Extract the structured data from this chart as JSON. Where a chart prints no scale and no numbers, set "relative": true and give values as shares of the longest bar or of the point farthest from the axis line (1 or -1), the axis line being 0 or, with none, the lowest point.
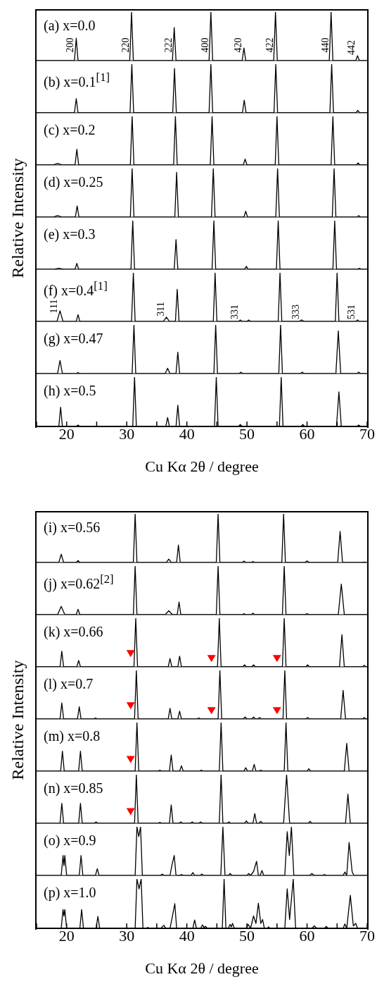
{
  "chart_data": [
    {
      "type": "line",
      "title": "(a) x=0.0",
      "ylabel": "Relative Intensity",
      "relative": true,
      "xlim": [
        15,
        70
      ],
      "tick_labels": false,
      "annotations": [
        {
          "text": "200",
          "x": 21.6,
          "y": 0.46
        },
        {
          "text": "220",
          "x": 30.8,
          "y": 1
        },
        {
          "text": "222",
          "x": 37.9,
          "y": 0.68
        },
        {
          "text": "400",
          "x": 44.0,
          "y": 1
        },
        {
          "text": "420",
          "x": 49.5,
          "y": 0.26
        },
        {
          "text": "422",
          "x": 54.75,
          "y": 1
        },
        {
          "text": "440",
          "x": 64.0,
          "y": 1
        },
        {
          "text": "442",
          "x": 68.4,
          "y": 0.1
        }
      ],
      "series": [
        {
          "color": "#000000",
          "x": [
            15,
            21.3,
            21.6,
            21.9,
            30.5,
            30.8,
            31.1,
            37.6,
            37.9,
            38.2,
            43.7,
            44.0,
            44.3,
            49.2,
            49.5,
            49.8,
            54.45,
            54.75,
            55.05,
            63.7,
            64.0,
            64.3,
            68.1,
            68.4,
            68.7,
            70
          ],
          "values": [
            0,
            0,
            0.46,
            0,
            0,
            1,
            0,
            0,
            0.68,
            0,
            0,
            1,
            0,
            0,
            0.26,
            0,
            0,
            1,
            0,
            0,
            1,
            0,
            0,
            0.1,
            0,
            0
          ]
        }
      ]
    },
    {
      "type": "line",
      "title": "(b) x=0.1$^{[1]}$",
      "relative": true,
      "xlim": [
        15,
        70
      ],
      "tick_labels": false,
      "series": [
        {
          "color": "#000000",
          "x": [
            15,
            21.3,
            21.6,
            21.9,
            30.55,
            30.85,
            31.15,
            37.65,
            37.95,
            38.25,
            43.7,
            44.0,
            44.3,
            49.25,
            49.55,
            49.85,
            54.5,
            54.8,
            55.1,
            63.8,
            64.1,
            64.4,
            68.15,
            68.45,
            68.75,
            70
          ],
          "values": [
            0,
            0,
            0.29,
            0,
            0,
            1,
            0,
            0,
            0.91,
            0,
            0,
            1,
            0,
            0,
            0.26,
            0,
            0,
            1,
            0,
            0,
            1,
            0,
            0,
            0.05,
            0,
            0
          ]
        }
      ]
    },
    {
      "type": "line",
      "title": "(c) x=0.2",
      "relative": true,
      "xlim": [
        15,
        70
      ],
      "tick_labels": false,
      "series": [
        {
          "color": "#000000",
          "x": [
            15,
            17.7,
            18.5,
            19.3,
            21.4,
            21.7,
            22.0,
            30.6,
            30.9,
            31.2,
            37.8,
            38.1,
            38.4,
            43.9,
            44.2,
            44.5,
            49.4,
            49.7,
            50.0,
            54.7,
            55.0,
            55.3,
            64.0,
            64.3,
            64.6,
            68.2,
            68.5,
            68.8,
            70
          ],
          "values": [
            0,
            0,
            0.03,
            0,
            0,
            0.32,
            0,
            0,
            1,
            0,
            0,
            1,
            0,
            0,
            1,
            0,
            0,
            0.12,
            0,
            0,
            1,
            0,
            0,
            1,
            0,
            0,
            0.04,
            0,
            0
          ]
        }
      ]
    },
    {
      "type": "line",
      "title": "(d) x=0.25",
      "relative": true,
      "xlim": [
        15,
        70
      ],
      "tick_labels": false,
      "series": [
        {
          "color": "#000000",
          "x": [
            15,
            17.7,
            18.5,
            19.3,
            21.45,
            21.75,
            22.05,
            30.6,
            30.9,
            31.2,
            38.0,
            38.3,
            38.6,
            44.1,
            44.4,
            44.7,
            49.5,
            49.8,
            50.1,
            54.8,
            55.1,
            55.4,
            64.2,
            64.5,
            64.8,
            68.3,
            68.6,
            68.9,
            70
          ],
          "values": [
            0,
            0,
            0.03,
            0,
            0,
            0.23,
            0,
            0,
            1,
            0,
            0,
            0.92,
            0,
            0,
            1,
            0,
            0,
            0.12,
            0,
            0,
            1,
            0,
            0,
            1,
            0,
            0,
            0.03,
            0,
            0
          ]
        }
      ]
    },
    {
      "type": "line",
      "title": "(e) x=0.3",
      "relative": true,
      "xlim": [
        15,
        70
      ],
      "tick_labels": false,
      "series": [
        {
          "color": "#000000",
          "x": [
            15,
            17.9,
            18.7,
            19.5,
            21.4,
            21.7,
            22.0,
            30.7,
            31.0,
            31.3,
            37.9,
            38.2,
            38.5,
            44.2,
            44.5,
            44.8,
            49.6,
            49.9,
            50.2,
            54.9,
            55.2,
            55.5,
            64.3,
            64.6,
            64.9,
            68.4,
            68.7,
            69.0,
            70
          ],
          "values": [
            0,
            0,
            0.02,
            0,
            0,
            0.12,
            0,
            0,
            1,
            0,
            0,
            0.61,
            0,
            0,
            1,
            0,
            0,
            0.06,
            0,
            0,
            1,
            0,
            0,
            1,
            0,
            0,
            0.02,
            0,
            0
          ]
        }
      ]
    },
    {
      "type": "line",
      "title": "(f) x=0.4$^{[1]}$",
      "relative": true,
      "xlim": [
        15,
        70
      ],
      "tick_labels": false,
      "annotations": [
        {
          "text": "111",
          "x": 18.9,
          "y": 0.22
        },
        {
          "text": "311",
          "x": 36.6,
          "y": 0.09
        },
        {
          "text": "331",
          "x": 48.9,
          "y": 0.03
        },
        {
          "text": "333",
          "x": 59.1,
          "y": 0.03
        },
        {
          "text": "531",
          "x": 68.4,
          "y": 0.03
        }
      ],
      "series": [
        {
          "color": "#000000",
          "x": [
            15,
            18.4,
            18.9,
            19.4,
            21.6,
            21.9,
            22.2,
            30.8,
            31.1,
            31.4,
            36.1,
            36.6,
            37.1,
            38.1,
            38.4,
            38.7,
            44.4,
            44.7,
            45.0,
            48.6,
            48.9,
            49.2,
            50.0,
            50.3,
            50.6,
            55.2,
            55.5,
            55.8,
            58.7,
            59.1,
            59.5,
            64.7,
            65.0,
            65.3,
            68.1,
            68.4,
            68.7,
            70
          ],
          "values": [
            0,
            0,
            0.22,
            0,
            0,
            0.14,
            0,
            0,
            1,
            0,
            0,
            0.09,
            0,
            0,
            0.66,
            0,
            0,
            1,
            0,
            0,
            0.03,
            0,
            0,
            0.03,
            0,
            0,
            1,
            0,
            0,
            0.03,
            0,
            0,
            1,
            0,
            0,
            0.03,
            0,
            0
          ]
        }
      ]
    },
    {
      "type": "line",
      "title": "(g) x=0.47",
      "relative": true,
      "xlim": [
        15,
        70
      ],
      "tick_labels": false,
      "series": [
        {
          "color": "#000000",
          "x": [
            15,
            18.5,
            18.9,
            19.3,
            21.6,
            21.9,
            22.2,
            30.9,
            31.2,
            31.5,
            36.4,
            36.8,
            37.2,
            38.2,
            38.5,
            38.8,
            44.5,
            44.8,
            45.1,
            48.7,
            49.0,
            49.3,
            55.3,
            55.6,
            55.9,
            58.9,
            59.2,
            59.5,
            64.8,
            65.2,
            65.6,
            68.3,
            68.6,
            68.9,
            70
          ],
          "values": [
            0,
            0,
            0.27,
            0,
            0,
            0.02,
            0,
            0,
            1,
            0,
            0,
            0.11,
            0,
            0,
            0.44,
            0,
            0,
            1,
            0,
            0,
            0.03,
            0,
            0,
            1,
            0,
            0,
            0.03,
            0,
            0,
            0.88,
            0,
            0,
            0.03,
            0,
            0
          ]
        }
      ]
    },
    {
      "type": "line",
      "title": "(h) x=0.5",
      "xlabel": "Cu Kα 2θ / degree",
      "relative": true,
      "xlim": [
        15,
        70
      ],
      "xticks": [
        {
          "value": 15,
          "label": null
        },
        20,
        {
          "value": 25,
          "label": null
        },
        30,
        {
          "value": 35,
          "label": null
        },
        40,
        {
          "value": 45,
          "label": null
        },
        50,
        {
          "value": 55,
          "label": null
        },
        60,
        {
          "value": 65,
          "label": null
        },
        70
      ],
      "tick_labels": "x",
      "series": [
        {
          "color": "#000000",
          "x": [
            15,
            18.7,
            19.0,
            19.3,
            21.6,
            21.9,
            22.2,
            31.0,
            31.3,
            31.6,
            36.5,
            36.8,
            37.1,
            38.2,
            38.5,
            38.8,
            44.6,
            44.9,
            45.2,
            48.6,
            48.9,
            49.2,
            55.4,
            55.7,
            56.0,
            59.0,
            59.3,
            59.6,
            64.9,
            65.3,
            65.7,
            68.3,
            68.6,
            68.9,
            70
          ],
          "values": [
            0,
            0,
            0.39,
            0,
            0,
            0.03,
            0,
            0,
            1,
            0,
            0,
            0.18,
            0,
            0,
            0.43,
            0,
            0,
            1,
            0,
            0,
            0.04,
            0,
            0,
            1,
            0,
            0,
            0.04,
            0,
            0,
            0.7,
            0,
            0,
            0.03,
            0,
            0
          ]
        }
      ]
    },
    {
      "type": "line",
      "title": "(i) x=0.56",
      "ylabel": "Relative Intensity",
      "relative": true,
      "xlim": [
        15,
        70
      ],
      "tick_labels": false,
      "series": [
        {
          "color": "#000000",
          "x": [
            15,
            18.7,
            19.1,
            19.5,
            21.6,
            21.9,
            22.2,
            31.1,
            31.4,
            31.7,
            36.6,
            37.0,
            37.4,
            38.3,
            38.6,
            38.9,
            44.9,
            45.2,
            45.5,
            49.2,
            49.5,
            49.8,
            50.7,
            51.0,
            51.3,
            55.8,
            56.1,
            56.4,
            59.6,
            60.0,
            60.4,
            65.1,
            65.5,
            65.9,
            69.2,
            69.5,
            69.8,
            70
          ],
          "values": [
            0,
            0,
            0.17,
            0,
            0,
            0.04,
            0,
            0,
            1,
            0,
            0,
            0.07,
            0,
            0,
            0.36,
            0,
            0,
            1,
            0,
            0,
            0.03,
            0,
            0,
            0.02,
            0,
            0,
            1,
            0,
            0,
            0.03,
            0,
            0,
            0.64,
            0,
            0,
            0.01,
            0,
            0
          ]
        }
      ]
    },
    {
      "type": "line",
      "title": "(j) x=0.62$^{[2]}$",
      "relative": true,
      "xlim": [
        15,
        70
      ],
      "tick_labels": false,
      "series": [
        {
          "color": "#000000",
          "x": [
            15,
            18.5,
            19.1,
            19.7,
            21.6,
            21.9,
            22.2,
            31.1,
            31.4,
            31.7,
            36.4,
            37.0,
            37.6,
            38.4,
            38.7,
            39.0,
            44.9,
            45.2,
            45.5,
            49.2,
            49.5,
            49.8,
            50.7,
            51.0,
            51.3,
            55.9,
            56.2,
            56.5,
            59.6,
            60.0,
            60.4,
            65.2,
            65.7,
            66.2,
            70
          ],
          "values": [
            0,
            0,
            0.17,
            0,
            0,
            0.11,
            0,
            0,
            1,
            0,
            0,
            0.08,
            0,
            0,
            0.26,
            0,
            0,
            1,
            0,
            0,
            0.02,
            0,
            0,
            0.03,
            0,
            0,
            1,
            0,
            0,
            0.02,
            0,
            0,
            0.63,
            0,
            0
          ]
        }
      ]
    },
    {
      "type": "line",
      "title": "(k) x=0.66",
      "relative": true,
      "xlim": [
        15,
        70
      ],
      "tick_labels": false,
      "series": [
        {
          "color": "#000000",
          "x": [
            15,
            18.9,
            19.2,
            19.5,
            21.7,
            22.0,
            22.3,
            31.2,
            31.5,
            31.8,
            36.9,
            37.2,
            37.5,
            38.5,
            38.8,
            39.1,
            45.1,
            45.4,
            45.7,
            49.3,
            49.6,
            49.9,
            50.8,
            51.1,
            51.4,
            55.9,
            56.2,
            56.5,
            59.8,
            60.1,
            60.4,
            65.4,
            65.8,
            66.2,
            69.2,
            69.5,
            69.8,
            70
          ],
          "values": [
            0,
            0,
            0.32,
            0,
            0,
            0.13,
            0,
            0,
            1,
            0,
            0,
            0.17,
            0,
            0,
            0.22,
            0,
            0,
            1,
            0,
            0,
            0.04,
            0,
            0,
            0.04,
            0,
            0,
            1,
            0,
            0,
            0.04,
            0,
            0,
            0.66,
            0,
            0,
            0.03,
            0,
            0
          ]
        },
        {
          "type": "scatter",
          "color": "#ff0000",
          "marker": "triangle",
          "x": [
            30.65,
            44.1,
            55.0
          ],
          "values": [
            0.27,
            0.17,
            0.17
          ]
        }
      ]
    },
    {
      "type": "line",
      "title": "(l) x=0.7",
      "relative": true,
      "xlim": [
        15,
        70
      ],
      "tick_labels": false,
      "series": [
        {
          "color": "#000000",
          "x": [
            15,
            18.9,
            19.2,
            19.5,
            21.8,
            22.1,
            22.4,
            24.5,
            24.8,
            25.1,
            31.3,
            31.6,
            31.9,
            36.9,
            37.2,
            37.5,
            38.5,
            38.8,
            39.1,
            41.7,
            42.0,
            42.3,
            45.2,
            45.5,
            45.8,
            49.4,
            49.7,
            50.0,
            50.8,
            51.1,
            51.4,
            51.8,
            52.1,
            52.4,
            56.0,
            56.3,
            56.6,
            59.8,
            60.1,
            60.4,
            65.6,
            66.0,
            66.4,
            69.2,
            69.5,
            69.8,
            70
          ],
          "values": [
            0,
            0,
            0.33,
            0,
            0,
            0.25,
            0,
            0,
            0.02,
            0,
            0,
            1,
            0,
            0,
            0.22,
            0,
            0,
            0.16,
            0,
            0,
            0.02,
            0,
            0,
            1,
            0,
            0,
            0.04,
            0,
            0,
            0.04,
            0,
            0,
            0.03,
            0,
            0,
            1,
            0,
            0,
            0.03,
            0,
            0,
            0.59,
            0,
            0,
            0.03,
            0,
            0
          ]
        },
        {
          "type": "scatter",
          "color": "#ff0000",
          "marker": "triangle",
          "x": [
            30.65,
            44.1,
            55.0
          ],
          "values": [
            0.27,
            0.17,
            0.17
          ]
        }
      ]
    },
    {
      "type": "line",
      "title": "(m) x=0.8",
      "relative": true,
      "xlim": [
        15,
        70
      ],
      "tick_labels": false,
      "series": [
        {
          "color": "#000000",
          "x": [
            15,
            19.0,
            19.3,
            19.6,
            22.0,
            22.3,
            22.6,
            31.4,
            31.7,
            32.0,
            35.2,
            35.5,
            35.8,
            37.1,
            37.4,
            37.7,
            38.8,
            39.1,
            39.4,
            42.1,
            42.4,
            42.7,
            45.4,
            45.7,
            46.0,
            49.5,
            49.8,
            50.1,
            50.9,
            51.2,
            51.5,
            52.0,
            52.3,
            52.6,
            56.2,
            56.5,
            56.8,
            60.0,
            60.3,
            60.6,
            66.2,
            66.6,
            67.0,
            70
          ],
          "values": [
            0,
            0,
            0.41,
            0,
            0,
            0.41,
            0,
            0,
            1,
            0,
            0,
            0.02,
            0,
            0,
            0.33,
            0,
            0,
            0.11,
            0,
            0,
            0.02,
            0,
            0,
            1,
            0,
            0,
            0.07,
            0,
            0,
            0.14,
            0,
            0,
            0.02,
            0,
            0,
            1,
            0,
            0,
            0.05,
            0,
            0,
            0.57,
            0,
            0
          ]
        },
        {
          "type": "scatter",
          "color": "#ff0000",
          "marker": "triangle",
          "x": [
            30.65
          ],
          "values": [
            0.24
          ]
        }
      ]
    },
    {
      "type": "line",
      "title": "(n) x=0.85",
      "relative": true,
      "xlim": [
        15,
        70
      ],
      "tick_labels": false,
      "series": [
        {
          "color": "#000000",
          "x": [
            15,
            18.9,
            19.2,
            19.5,
            22.0,
            22.3,
            22.6,
            24.6,
            24.9,
            25.2,
            31.3,
            31.6,
            31.9,
            35.2,
            35.5,
            35.8,
            37.1,
            37.4,
            37.7,
            38.7,
            39.0,
            39.3,
            40.6,
            40.9,
            41.2,
            42.0,
            42.3,
            42.6,
            45.4,
            45.7,
            46.0,
            46.7,
            47.0,
            47.3,
            49.6,
            49.9,
            50.2,
            51.0,
            51.3,
            51.6,
            52.0,
            52.3,
            52.6,
            56.1,
            56.6,
            57.1,
            60.2,
            60.5,
            60.8,
            66.4,
            66.8,
            67.2,
            70
          ],
          "values": [
            0,
            0,
            0.41,
            0,
            0,
            0.41,
            0,
            0,
            0.03,
            0,
            0,
            1,
            0,
            0,
            0.02,
            0,
            0,
            0.38,
            0,
            0,
            0.03,
            0,
            0,
            0.03,
            0,
            0,
            0.03,
            0,
            0,
            1,
            0,
            0,
            0.03,
            0,
            0,
            0.05,
            0,
            0,
            0.2,
            0,
            0,
            0.04,
            0,
            0,
            1,
            0,
            0,
            0.04,
            0,
            0,
            0.6,
            0,
            0
          ]
        },
        {
          "type": "scatter",
          "color": "#ff0000",
          "marker": "triangle",
          "x": [
            30.65
          ],
          "values": [
            0.24
          ]
        }
      ]
    },
    {
      "type": "line",
      "title": "(o) x=0.9",
      "relative": true,
      "xlim": [
        15,
        70
      ],
      "tick_labels": false,
      "series": [
        {
          "color": "#000000",
          "x": [
            15,
            19.1,
            19.4,
            19.55,
            19.7,
            20.0,
            22.1,
            22.4,
            22.7,
            24.8,
            25.1,
            25.4,
            31.4,
            31.7,
            32.0,
            32.3,
            32.6,
            35.6,
            35.9,
            36.2,
            37.2,
            37.5,
            37.9,
            38.2,
            38.8,
            39.1,
            39.4,
            40.7,
            41.0,
            41.3,
            42.2,
            42.5,
            42.8,
            45.65,
            46.0,
            46.35,
            46.9,
            47.2,
            47.5,
            50.0,
            50.3,
            50.6,
            51.1,
            51.6,
            51.9,
            52.2,
            52.5,
            52.8,
            56.3,
            56.7,
            57.05,
            57.4,
            57.8,
            60.4,
            60.8,
            61.2,
            62.6,
            62.9,
            63.2,
            66.0,
            66.3,
            66.6,
            67.0,
            67.5,
            67.8,
            70
          ],
          "values": [
            0,
            0,
            0.41,
            0.2,
            0.41,
            0,
            0,
            0.41,
            0,
            0,
            0.14,
            0,
            0,
            1,
            0.8,
            1,
            0,
            0,
            0.03,
            0,
            0,
            0.2,
            0.41,
            0,
            0,
            0.02,
            0,
            0,
            0.06,
            0,
            0,
            0.03,
            0,
            0,
            1,
            0,
            0,
            0.04,
            0,
            0,
            0.04,
            0,
            0.08,
            0.29,
            0,
            0,
            0.1,
            0,
            0,
            0.9,
            0.41,
            1,
            0,
            0,
            0.04,
            0,
            0,
            0.02,
            0,
            0,
            0.07,
            0,
            0.68,
            0.08,
            0,
            0
          ]
        }
      ]
    },
    {
      "type": "line",
      "title": "(p) x=1.0",
      "xlabel": "Cu Kα 2θ / degree",
      "relative": true,
      "xlim": [
        15,
        70
      ],
      "xticks": [
        {
          "value": 15,
          "label": null
        },
        20,
        {
          "value": 25,
          "label": null
        },
        30,
        {
          "value": 35,
          "label": null
        },
        40,
        {
          "value": 45,
          "label": null
        },
        50,
        {
          "value": 55,
          "label": null
        },
        60,
        {
          "value": 65,
          "label": null
        },
        70
      ],
      "tick_labels": "x",
      "series": [
        {
          "color": "#000000",
          "x": [
            15,
            19.1,
            19.4,
            19.55,
            19.7,
            20.0,
            22.2,
            22.5,
            22.8,
            24.9,
            25.2,
            25.5,
            31.4,
            31.7,
            32.05,
            32.4,
            32.7,
            33.3,
            33.5,
            33.7,
            35.7,
            35.9,
            36.2,
            36.5,
            37.2,
            37.5,
            38.0,
            38.3,
            41.0,
            41.3,
            41.6,
            42.3,
            42.6,
            42.85,
            43.1,
            43.4,
            45.9,
            46.2,
            46.5,
            46.9,
            47.2,
            47.4,
            47.6,
            47.9,
            49.9,
            50.2,
            50.6,
            51.1,
            51.5,
            51.9,
            52.3,
            52.6,
            52.9,
            53.4,
            53.6,
            53.8,
            56.3,
            56.7,
            57.1,
            57.7,
            58.1,
            60.8,
            61.2,
            61.6,
            62.9,
            63.2,
            63.5,
            66.0,
            66.3,
            66.6,
            67.2,
            67.7,
            68.1,
            68.4,
            70
          ],
          "values": [
            0,
            0,
            0.38,
            0.25,
            0.38,
            0,
            0,
            0.38,
            0,
            0,
            0.24,
            0,
            0,
            1,
            0.8,
            1,
            0,
            0,
            0.02,
            0,
            0,
            0.03,
            0.06,
            0,
            0,
            0.18,
            0.5,
            0,
            0,
            0.17,
            0,
            0,
            0.07,
            0.02,
            0.04,
            0,
            0,
            1,
            0,
            0,
            0.08,
            0.03,
            0.1,
            0,
            0,
            0.08,
            0,
            0.25,
            0.1,
            0.51,
            0.1,
            0.18,
            0,
            0,
            0.03,
            0,
            0,
            0.8,
            0.18,
            1,
            0,
            0,
            0.05,
            0,
            0,
            0.04,
            0,
            0,
            0.09,
            0,
            0.67,
            0.05,
            0.1,
            0,
            0
          ]
        }
      ]
    }
  ]
}
